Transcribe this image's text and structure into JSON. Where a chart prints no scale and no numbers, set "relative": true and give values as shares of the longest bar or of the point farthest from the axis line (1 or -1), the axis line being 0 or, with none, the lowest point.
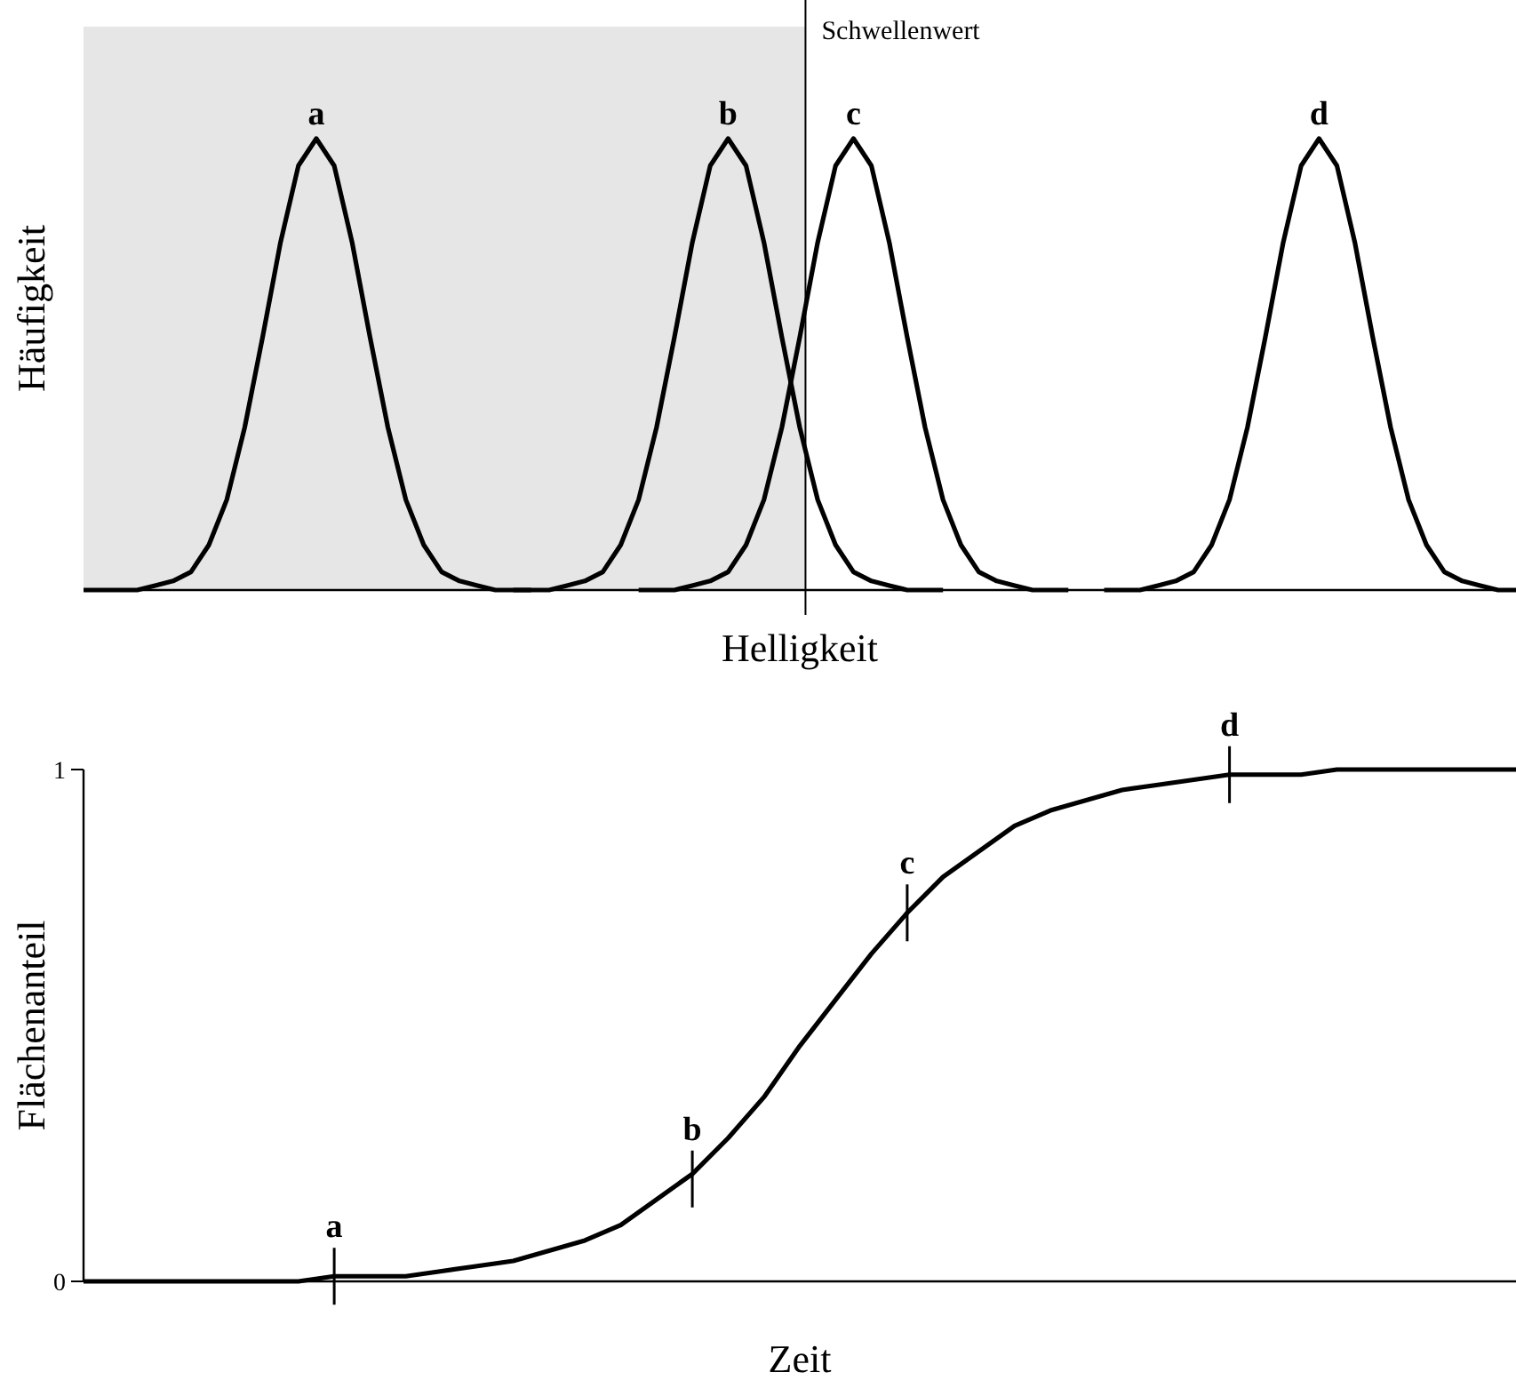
{
  "chart_data": [
    {
      "type": "line",
      "relative": true,
      "xlabel": "Helligkeit",
      "ylabel": "Häufigkeit",
      "tick_labels": false,
      "categories": [
        null,
        null,
        null,
        null,
        null,
        null,
        null,
        null,
        null,
        null,
        null,
        null,
        null,
        null,
        null,
        null,
        null,
        null,
        null,
        null,
        null,
        null,
        null,
        null,
        null,
        null,
        null,
        null,
        null,
        null,
        null,
        null,
        null,
        null,
        null,
        null,
        null,
        null,
        null,
        null,
        null,
        null,
        null,
        null,
        null,
        null,
        null,
        null,
        null,
        null,
        null,
        null,
        null,
        null,
        null,
        null,
        null,
        null,
        null,
        null,
        null,
        null,
        null,
        null,
        null,
        null,
        null,
        null,
        null,
        null,
        null,
        null,
        null,
        null,
        null,
        null,
        null,
        null,
        null,
        null,
        null
      ],
      "series": [
        {
          "color": "#000000",
          "values": [
            0,
            0,
            0,
            0,
            0.01,
            0.02,
            0.04,
            0.1,
            0.2,
            0.36,
            0.56,
            0.77,
            0.94,
            1,
            0.94,
            0.77,
            0.56,
            0.36,
            0.2,
            0.1,
            0.04,
            0.02,
            0.01,
            0,
            0,
            0,
            null,
            null,
            null,
            null,
            null,
            null,
            null,
            null,
            null,
            null,
            null,
            null,
            null,
            null,
            null,
            null,
            null,
            null,
            null,
            null,
            null,
            null,
            null,
            null,
            null,
            null,
            null,
            null,
            null,
            null,
            null,
            null,
            null,
            null,
            null,
            null,
            null,
            null,
            null,
            null,
            null,
            null,
            null,
            null,
            null,
            null,
            null,
            null,
            null,
            null,
            null,
            null,
            null,
            null,
            null
          ]
        },
        {
          "color": "#000000",
          "values": [
            null,
            null,
            null,
            null,
            null,
            null,
            null,
            null,
            null,
            null,
            null,
            null,
            null,
            null,
            null,
            null,
            null,
            null,
            null,
            null,
            null,
            null,
            null,
            null,
            0,
            0,
            0,
            0.01,
            0.02,
            0.04,
            0.1,
            0.2,
            0.36,
            0.56,
            0.77,
            0.94,
            1,
            0.94,
            0.77,
            0.56,
            0.36,
            0.2,
            0.1,
            0.04,
            0.02,
            0.01,
            0,
            0,
            0,
            null,
            null,
            null,
            null,
            null,
            null,
            null,
            null,
            null,
            null,
            null,
            null,
            null,
            null,
            null,
            null,
            null,
            null,
            null,
            null,
            null,
            null,
            null,
            null,
            null,
            null,
            null,
            null,
            null,
            null,
            null,
            null
          ]
        },
        {
          "color": "#000000",
          "values": [
            null,
            null,
            null,
            null,
            null,
            null,
            null,
            null,
            null,
            null,
            null,
            null,
            null,
            null,
            null,
            null,
            null,
            null,
            null,
            null,
            null,
            null,
            null,
            null,
            null,
            null,
            null,
            null,
            null,
            null,
            null,
            0,
            0,
            0,
            0.01,
            0.02,
            0.04,
            0.1,
            0.2,
            0.36,
            0.56,
            0.77,
            0.94,
            1,
            0.94,
            0.77,
            0.56,
            0.36,
            0.2,
            0.1,
            0.04,
            0.02,
            0.01,
            0,
            0,
            0,
            null,
            null,
            null,
            null,
            null,
            null,
            null,
            null,
            null,
            null,
            null,
            null,
            null,
            null,
            null,
            null,
            null,
            null,
            null,
            null,
            null,
            null,
            null,
            null,
            null
          ]
        },
        {
          "color": "#000000",
          "values": [
            null,
            null,
            null,
            null,
            null,
            null,
            null,
            null,
            null,
            null,
            null,
            null,
            null,
            null,
            null,
            null,
            null,
            null,
            null,
            null,
            null,
            null,
            null,
            null,
            null,
            null,
            null,
            null,
            null,
            null,
            null,
            null,
            null,
            null,
            null,
            null,
            null,
            null,
            null,
            null,
            null,
            null,
            null,
            null,
            null,
            null,
            null,
            null,
            null,
            null,
            null,
            null,
            null,
            null,
            null,
            null,
            null,
            0,
            0,
            0,
            0.01,
            0.02,
            0.04,
            0.1,
            0.2,
            0.36,
            0.56,
            0.77,
            0.94,
            1,
            0.94,
            0.77,
            0.56,
            0.36,
            0.2,
            0.1,
            0.04,
            0.02,
            0.01,
            0,
            0
          ]
        }
      ],
      "annotations": [
        {
          "text": "a",
          "y": 1
        },
        {
          "text": "b",
          "y": 1
        },
        {
          "text": "c",
          "y": 1
        },
        {
          "text": "d",
          "y": 1
        },
        {
          "text": "Schwellenwert"
        }
      ]
    },
    {
      "type": "line",
      "xlabel": "Zeit",
      "ylabel": "Flächenanteil",
      "ylim": [
        0,
        1
      ],
      "yticks": [
        0,
        1
      ],
      "tick_labels": "y",
      "categories": [
        null,
        null,
        null,
        null,
        null,
        null,
        null,
        null,
        null,
        null,
        null,
        null,
        null,
        null,
        null,
        null,
        null,
        null,
        null,
        null,
        null,
        null,
        null,
        null,
        null,
        null,
        null,
        null,
        null,
        null,
        null,
        null,
        null,
        null,
        null,
        null,
        null,
        null,
        null,
        null,
        null
      ],
      "series": [
        {
          "color": "#000000",
          "values": [
            0,
            0,
            0,
            0,
            0,
            0,
            0,
            0.01,
            0.01,
            0.01,
            0.02,
            0.03,
            0.04,
            0.06,
            0.08,
            0.11,
            0.16,
            0.21,
            0.28,
            0.36,
            0.46,
            0.55,
            0.64,
            0.72,
            0.79,
            0.84,
            0.89,
            0.92,
            0.94,
            0.96,
            0.97,
            0.98,
            0.99,
            0.99,
            0.99,
            1,
            1,
            1,
            1,
            1,
            1
          ]
        }
      ],
      "annotations": [
        {
          "text": "a",
          "y": 0.01
        },
        {
          "text": "b",
          "y": 0.2
        },
        {
          "text": "c",
          "y": 0.72
        },
        {
          "text": "d",
          "y": 0.99
        }
      ]
    }
  ]
}
